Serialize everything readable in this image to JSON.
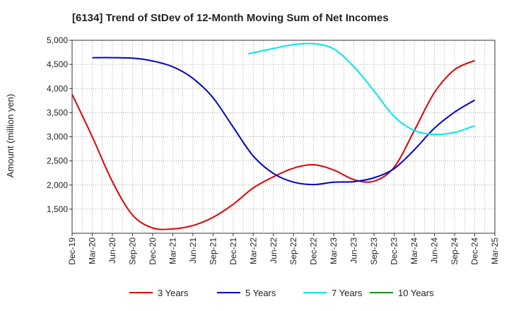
{
  "chart_data": {
    "type": "line",
    "title": "[6134]  Trend of StDev of 12-Month Moving Sum of Net Incomes",
    "xlabel": "",
    "ylabel": "Amount (million yen)",
    "x_ticks": [
      "Dec-19",
      "Mar-20",
      "Jun-20",
      "Sep-20",
      "Dec-20",
      "Mar-21",
      "Jun-21",
      "Sep-21",
      "Dec-21",
      "Mar-22",
      "Jun-22",
      "Sep-22",
      "Dec-22",
      "Mar-23",
      "Jun-23",
      "Sep-23",
      "Dec-23",
      "Mar-24",
      "Jun-24",
      "Sep-24",
      "Dec-24",
      "Mar-25"
    ],
    "y_ticks": [
      "1,500",
      "2,000",
      "2,500",
      "3,000",
      "3,500",
      "4,000",
      "4,500",
      "5,000"
    ],
    "y_tick_values": [
      1500,
      2000,
      2500,
      3000,
      3500,
      4000,
      4500,
      5000
    ],
    "ylim": [
      1000,
      5000
    ],
    "grid": true,
    "legend_position": "bottom",
    "series": [
      {
        "name": "3 Years",
        "color": "#e00000",
        "points": [
          [
            0,
            3880
          ],
          [
            1,
            3000
          ],
          [
            2,
            2070
          ],
          [
            3,
            1380
          ],
          [
            4,
            1110
          ],
          [
            5,
            1090
          ],
          [
            6,
            1160
          ],
          [
            7,
            1330
          ],
          [
            8,
            1600
          ],
          [
            9,
            1940
          ],
          [
            10,
            2170
          ],
          [
            11,
            2350
          ],
          [
            12,
            2420
          ],
          [
            13,
            2310
          ],
          [
            14,
            2110
          ],
          [
            15,
            2080
          ],
          [
            16,
            2370
          ],
          [
            17,
            3130
          ],
          [
            18,
            3920
          ],
          [
            19,
            4390
          ],
          [
            20,
            4580
          ]
        ]
      },
      {
        "name": "5 Years",
        "color": "#0000cc",
        "points": [
          [
            1,
            4640
          ],
          [
            2,
            4640
          ],
          [
            3,
            4630
          ],
          [
            4,
            4570
          ],
          [
            5,
            4450
          ],
          [
            6,
            4210
          ],
          [
            7,
            3810
          ],
          [
            8,
            3200
          ],
          [
            9,
            2600
          ],
          [
            10,
            2240
          ],
          [
            11,
            2060
          ],
          [
            12,
            2010
          ],
          [
            13,
            2060
          ],
          [
            14,
            2070
          ],
          [
            15,
            2150
          ],
          [
            16,
            2340
          ],
          [
            17,
            2730
          ],
          [
            18,
            3180
          ],
          [
            19,
            3510
          ],
          [
            20,
            3760
          ]
        ]
      },
      {
        "name": "7 Years",
        "color": "#00e5ee",
        "points": [
          [
            8.75,
            4720
          ],
          [
            10,
            4830
          ],
          [
            11,
            4910
          ],
          [
            12,
            4930
          ],
          [
            13,
            4820
          ],
          [
            14,
            4450
          ],
          [
            15,
            3950
          ],
          [
            16,
            3420
          ],
          [
            17,
            3130
          ],
          [
            18,
            3050
          ],
          [
            19,
            3090
          ],
          [
            20,
            3230
          ]
        ]
      },
      {
        "name": "10 Years",
        "color": "#228b22",
        "points": []
      }
    ]
  }
}
